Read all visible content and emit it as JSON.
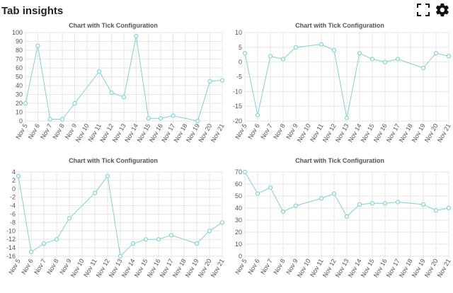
{
  "page": {
    "title": "Tab insights"
  },
  "icons": {
    "fullscreen": "fullscreen-icon",
    "settings": "gear-icon"
  },
  "colors": {
    "series": "#7fd3d3",
    "grid": "#e6e6e6",
    "text": "#555555"
  },
  "chart_data": [
    {
      "type": "line",
      "title": "Chart with Tick Configuration",
      "x": [
        "Nov 5",
        "Nov 6",
        "Nov 7",
        "Nov 8",
        "Nov 9",
        "Nov 10",
        "Nov 11",
        "Nov 12",
        "Nov 13",
        "Nov 14",
        "Nov 15",
        "Nov 16",
        "Nov 17",
        "Nov 18",
        "Nov 19",
        "Nov 20",
        "Nov 21"
      ],
      "series": [
        {
          "x": [
            "Nov 5",
            "Nov 6",
            "Nov 7",
            "Nov 8",
            "Nov 9",
            "Nov 11",
            "Nov 12",
            "Nov 13",
            "Nov 14",
            "Nov 15",
            "Nov 16",
            "Nov 17",
            "Nov 19",
            "Nov 20",
            "Nov 21"
          ],
          "values": [
            20,
            85,
            2,
            2,
            20,
            56,
            32,
            27,
            96,
            3,
            3,
            6,
            0,
            45,
            46
          ]
        }
      ],
      "ylim": [
        0,
        100
      ],
      "yticks": [
        0,
        10,
        20,
        30,
        40,
        50,
        60,
        70,
        80,
        90,
        100
      ],
      "grid": true,
      "legend": "none"
    },
    {
      "type": "line",
      "title": "Chart with Tick Configuration",
      "x": [
        "Nov 5",
        "Nov 6",
        "Nov 7",
        "Nov 8",
        "Nov 9",
        "Nov 10",
        "Nov 11",
        "Nov 12",
        "Nov 13",
        "Nov 14",
        "Nov 15",
        "Nov 16",
        "Nov 17",
        "Nov 18",
        "Nov 19",
        "Nov 20",
        "Nov 21"
      ],
      "series": [
        {
          "x": [
            "Nov 5",
            "Nov 6",
            "Nov 7",
            "Nov 8",
            "Nov 9",
            "Nov 11",
            "Nov 12",
            "Nov 13",
            "Nov 14",
            "Nov 15",
            "Nov 16",
            "Nov 17",
            "Nov 19",
            "Nov 20",
            "Nov 21"
          ],
          "values": [
            3,
            -18,
            2,
            1,
            5,
            6,
            4,
            -19,
            3,
            1,
            0,
            1,
            -2,
            3,
            2
          ]
        }
      ],
      "ylim": [
        -20,
        10
      ],
      "yticks": [
        -20,
        -15,
        -10,
        -5,
        0,
        5,
        10
      ],
      "grid": true,
      "legend": "none"
    },
    {
      "type": "line",
      "title": "Chart with Tick Configuration",
      "x": [
        "Nov 5",
        "Nov 6",
        "Nov 7",
        "Nov 8",
        "Nov 9",
        "Nov 10",
        "Nov 11",
        "Nov 12",
        "Nov 13",
        "Nov 14",
        "Nov 15",
        "Nov 16",
        "Nov 17",
        "Nov 18",
        "Nov 19",
        "Nov 20",
        "Nov 21"
      ],
      "series": [
        {
          "x": [
            "Nov 5",
            "Nov 6",
            "Nov 7",
            "Nov 8",
            "Nov 9",
            "Nov 11",
            "Nov 12",
            "Nov 13",
            "Nov 14",
            "Nov 15",
            "Nov 16",
            "Nov 17",
            "Nov 19",
            "Nov 20",
            "Nov 21"
          ],
          "values": [
            3,
            -15,
            -13,
            -12,
            -7,
            -1,
            3,
            -16,
            -13,
            -12,
            -12,
            -11,
            -13,
            -10,
            -8
          ]
        }
      ],
      "ylim": [
        -16,
        4
      ],
      "yticks": [
        -16,
        -14,
        -12,
        -10,
        -8,
        -6,
        -4,
        -2,
        0,
        2,
        4
      ],
      "grid": true,
      "legend": "none"
    },
    {
      "type": "line",
      "title": "Chart with Tick Configuration",
      "x": [
        "Nov 5",
        "Nov 6",
        "Nov 7",
        "Nov 8",
        "Nov 9",
        "Nov 10",
        "Nov 11",
        "Nov 12",
        "Nov 13",
        "Nov 14",
        "Nov 15",
        "Nov 16",
        "Nov 17",
        "Nov 18",
        "Nov 19",
        "Nov 20",
        "Nov 21"
      ],
      "series": [
        {
          "x": [
            "Nov 5",
            "Nov 6",
            "Nov 7",
            "Nov 8",
            "Nov 9",
            "Nov 11",
            "Nov 12",
            "Nov 13",
            "Nov 14",
            "Nov 15",
            "Nov 16",
            "Nov 17",
            "Nov 19",
            "Nov 20",
            "Nov 21"
          ],
          "values": [
            70,
            52,
            57,
            37,
            42,
            48,
            52,
            33,
            43,
            44,
            44,
            45,
            43,
            38,
            40
          ]
        }
      ],
      "ylim": [
        0,
        70
      ],
      "yticks": [
        0,
        10,
        20,
        30,
        40,
        50,
        60,
        70
      ],
      "grid": true,
      "legend": "none"
    }
  ]
}
